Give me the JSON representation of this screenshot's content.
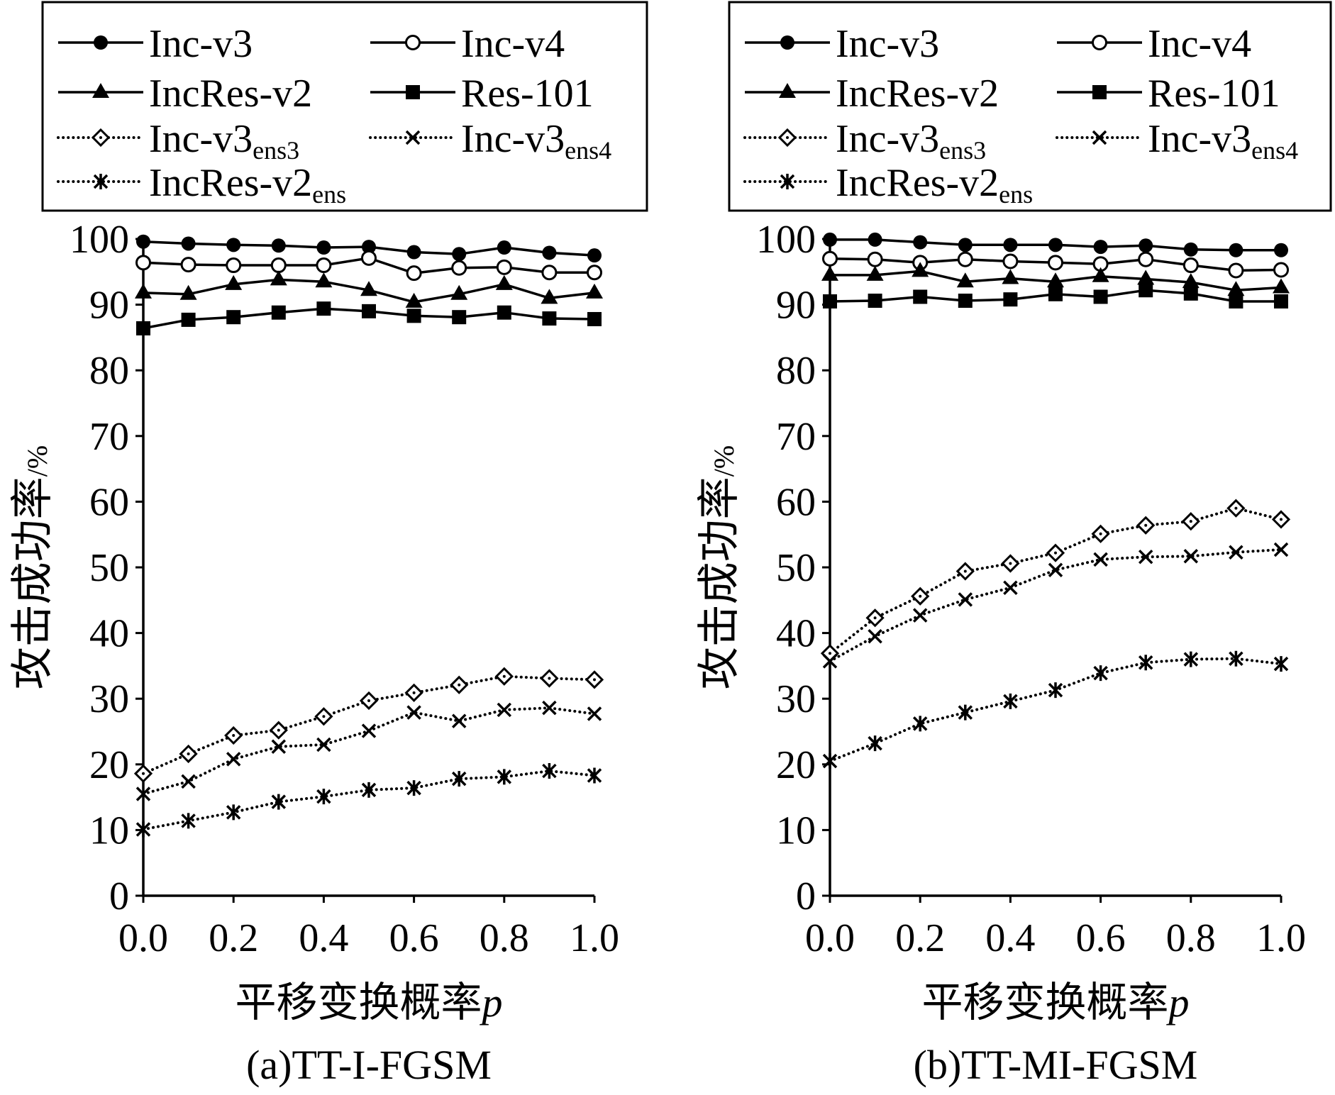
{
  "chart_data": [
    {
      "type": "line",
      "caption": "(a)TT-I-FGSM",
      "xlabel": "平移变换概率",
      "xlabel_var": "p",
      "ylabel": "攻击成功率",
      "ylabel_unit": "/%",
      "xlim": [
        0,
        1
      ],
      "ylim": [
        0,
        100
      ],
      "xticks": [
        "0.0",
        "0.2",
        "0.4",
        "0.6",
        "0.8",
        "1.0"
      ],
      "yticks": [
        "0",
        "10",
        "20",
        "30",
        "40",
        "50",
        "60",
        "70",
        "80",
        "90",
        "100"
      ],
      "grid": false,
      "legend": "top",
      "x": [
        0.0,
        0.1,
        0.2,
        0.3,
        0.4,
        0.5,
        0.6,
        0.7,
        0.8,
        0.9,
        1.0
      ],
      "series": [
        {
          "name": "Inc-v3",
          "marker": "filled-circle",
          "dotted": false,
          "values": [
            99.6,
            99.3,
            99.1,
            99.0,
            98.7,
            98.8,
            98.0,
            97.7,
            98.7,
            97.9,
            97.5
          ]
        },
        {
          "name": "Inc-v4",
          "marker": "open-circle",
          "dotted": false,
          "values": [
            96.4,
            96.1,
            96.0,
            96.0,
            96.0,
            97.1,
            94.8,
            95.6,
            95.7,
            94.9,
            94.9
          ]
        },
        {
          "name": "IncRes-v2",
          "marker": "filled-triangle",
          "dotted": false,
          "values": [
            91.8,
            91.6,
            93.1,
            93.8,
            93.5,
            92.2,
            90.4,
            91.6,
            93.1,
            91.0,
            91.8
          ]
        },
        {
          "name": "Res-101",
          "marker": "filled-square",
          "dotted": false,
          "values": [
            86.4,
            87.7,
            88.1,
            88.8,
            89.4,
            89.0,
            88.3,
            88.1,
            88.8,
            87.9,
            87.8
          ]
        },
        {
          "name": "Inc-v3",
          "sub": "ens3",
          "marker": "open-diamond",
          "dotted": true,
          "values": [
            18.6,
            21.6,
            24.4,
            25.2,
            27.3,
            29.7,
            30.9,
            32.1,
            33.4,
            33.1,
            32.9
          ]
        },
        {
          "name": "Inc-v3",
          "sub": "ens4",
          "marker": "x-cross",
          "dotted": true,
          "values": [
            15.5,
            17.4,
            20.8,
            22.7,
            23.0,
            25.1,
            27.9,
            26.6,
            28.3,
            28.6,
            27.7
          ]
        },
        {
          "name": "IncRes-v2",
          "sub": "ens",
          "marker": "asterisk",
          "dotted": true,
          "values": [
            10.1,
            11.4,
            12.7,
            14.3,
            15.1,
            16.1,
            16.4,
            17.8,
            18.1,
            19.0,
            18.3
          ]
        }
      ]
    },
    {
      "type": "line",
      "caption": "(b)TT-MI-FGSM",
      "xlabel": "平移变换概率",
      "xlabel_var": "p",
      "ylabel": "攻击成功率",
      "ylabel_unit": "/%",
      "xlim": [
        0,
        1
      ],
      "ylim": [
        0,
        100
      ],
      "xticks": [
        "0.0",
        "0.2",
        "0.4",
        "0.6",
        "0.8",
        "1.0"
      ],
      "yticks": [
        "0",
        "10",
        "20",
        "30",
        "40",
        "50",
        "60",
        "70",
        "80",
        "90",
        "100"
      ],
      "grid": false,
      "legend": "top",
      "x": [
        0.0,
        0.1,
        0.2,
        0.3,
        0.4,
        0.5,
        0.6,
        0.7,
        0.8,
        0.9,
        1.0
      ],
      "series": [
        {
          "name": "Inc-v3",
          "marker": "filled-circle",
          "dotted": false,
          "values": [
            99.9,
            99.9,
            99.5,
            99.1,
            99.1,
            99.1,
            98.8,
            99.0,
            98.4,
            98.3,
            98.3
          ]
        },
        {
          "name": "Inc-v4",
          "marker": "open-circle",
          "dotted": false,
          "values": [
            97.0,
            96.9,
            96.4,
            96.9,
            96.6,
            96.4,
            96.2,
            96.9,
            96.0,
            95.2,
            95.3
          ]
        },
        {
          "name": "IncRes-v2",
          "marker": "filled-triangle",
          "dotted": false,
          "values": [
            94.5,
            94.5,
            95.1,
            93.5,
            94.0,
            93.5,
            94.3,
            93.9,
            93.4,
            92.2,
            92.6
          ]
        },
        {
          "name": "Res-101",
          "marker": "filled-square",
          "dotted": false,
          "values": [
            90.5,
            90.6,
            91.2,
            90.6,
            90.8,
            91.6,
            91.2,
            92.2,
            91.7,
            90.5,
            90.5
          ]
        },
        {
          "name": "Inc-v3",
          "sub": "ens3",
          "marker": "open-diamond",
          "dotted": true,
          "values": [
            36.9,
            42.3,
            45.6,
            49.4,
            50.6,
            52.2,
            55.1,
            56.4,
            57.0,
            59.0,
            57.3
          ]
        },
        {
          "name": "Inc-v3",
          "sub": "ens4",
          "marker": "x-cross",
          "dotted": true,
          "values": [
            35.7,
            39.5,
            42.7,
            45.1,
            46.9,
            49.6,
            51.2,
            51.6,
            51.7,
            52.3,
            52.7
          ]
        },
        {
          "name": "IncRes-v2",
          "sub": "ens",
          "marker": "asterisk",
          "dotted": true,
          "values": [
            20.5,
            23.2,
            26.2,
            27.9,
            29.6,
            31.3,
            33.9,
            35.5,
            36.0,
            36.1,
            35.3
          ]
        }
      ]
    }
  ]
}
